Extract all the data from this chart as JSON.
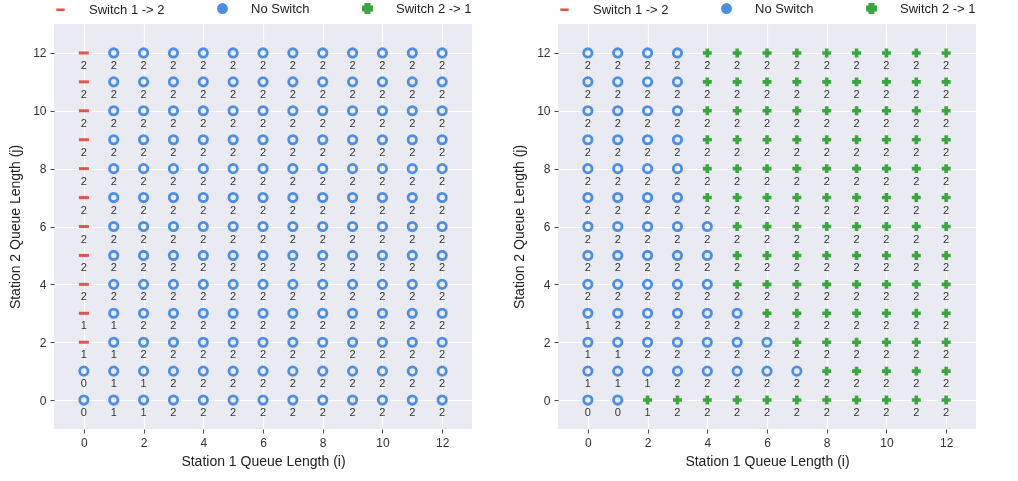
{
  "chart_data": [
    {
      "type": "scatter",
      "xlabel": "Station 1 Queue Length (i)",
      "ylabel": "Station 2 Queue Length (j)",
      "xlim": [
        -1,
        13
      ],
      "ylim": [
        -1,
        13
      ],
      "xticks": [
        0,
        2,
        4,
        6,
        8,
        10,
        12
      ],
      "yticks": [
        0,
        2,
        4,
        6,
        8,
        10,
        12
      ],
      "grid": true,
      "legend": "top",
      "series": [
        {
          "name": "Switch 1 -> 2",
          "color": "#e5534b",
          "x": [
            0,
            0,
            0,
            0,
            0,
            0,
            0,
            0,
            0,
            0,
            0
          ],
          "values": [
            2,
            3,
            4,
            5,
            6,
            7,
            8,
            9,
            10,
            11,
            12
          ]
        },
        {
          "name": "No Switch",
          "color": "#4a8fe7",
          "marker": "circle",
          "x": [
            0,
            1,
            2,
            3,
            4,
            5,
            6,
            7,
            8,
            9,
            10,
            11,
            12,
            0,
            1,
            2,
            3,
            4,
            5,
            6,
            7,
            8,
            9,
            10,
            11,
            12,
            1,
            2,
            3,
            4,
            5,
            6,
            7,
            8,
            9,
            10,
            11,
            12,
            1,
            2,
            3,
            4,
            5,
            6,
            7,
            8,
            9,
            10,
            11,
            12,
            1,
            2,
            3,
            4,
            5,
            6,
            7,
            8,
            9,
            10,
            11,
            12,
            1,
            2,
            3,
            4,
            5,
            6,
            7,
            8,
            9,
            10,
            11,
            12,
            1,
            2,
            3,
            4,
            5,
            6,
            7,
            8,
            9,
            10,
            11,
            12,
            1,
            2,
            3,
            4,
            5,
            6,
            7,
            8,
            9,
            10,
            11,
            12,
            1,
            2,
            3,
            4,
            5,
            6,
            7,
            8,
            9,
            10,
            11,
            12,
            1,
            2,
            3,
            4,
            5,
            6,
            7,
            8,
            9,
            10,
            11,
            12,
            1,
            2,
            3,
            4,
            5,
            6,
            7,
            8,
            9,
            10,
            11,
            12,
            1,
            2,
            3,
            4,
            5,
            6,
            7,
            8,
            9,
            10,
            11,
            12,
            1,
            2,
            3,
            4,
            5,
            6,
            7,
            8,
            9,
            10,
            11,
            12
          ],
          "values": [
            0,
            0,
            0,
            0,
            0,
            0,
            0,
            0,
            0,
            0,
            0,
            0,
            0,
            1,
            1,
            1,
            1,
            1,
            1,
            1,
            1,
            1,
            1,
            1,
            1,
            1,
            2,
            2,
            2,
            2,
            2,
            2,
            2,
            2,
            2,
            2,
            2,
            2,
            3,
            3,
            3,
            3,
            3,
            3,
            3,
            3,
            3,
            3,
            3,
            3,
            4,
            4,
            4,
            4,
            4,
            4,
            4,
            4,
            4,
            4,
            4,
            4,
            5,
            5,
            5,
            5,
            5,
            5,
            5,
            5,
            5,
            5,
            5,
            5,
            6,
            6,
            6,
            6,
            6,
            6,
            6,
            6,
            6,
            6,
            6,
            6,
            7,
            7,
            7,
            7,
            7,
            7,
            7,
            7,
            7,
            7,
            7,
            7,
            8,
            8,
            8,
            8,
            8,
            8,
            8,
            8,
            8,
            8,
            8,
            8,
            9,
            9,
            9,
            9,
            9,
            9,
            9,
            9,
            9,
            9,
            9,
            9,
            10,
            10,
            10,
            10,
            10,
            10,
            10,
            10,
            10,
            10,
            10,
            10,
            11,
            11,
            11,
            11,
            11,
            11,
            11,
            11,
            11,
            11,
            11,
            11,
            12,
            12,
            12,
            12,
            12,
            12,
            12,
            12,
            12,
            12,
            12,
            12
          ]
        },
        {
          "name": "Switch 2 -> 1",
          "color": "#36a93a",
          "marker": "cross"
        }
      ],
      "annotations": [
        {
          "text": "0",
          "x": 0,
          "y": 0
        },
        {
          "text": "1",
          "x": 1,
          "y": 0
        },
        {
          "text": "1",
          "x": 2,
          "y": 0
        },
        {
          "text": "2",
          "x": 3,
          "y": 0
        },
        {
          "text": "2",
          "x": 4,
          "y": 0
        },
        {
          "text": "2",
          "x": 5,
          "y": 0
        },
        {
          "text": "2",
          "x": 6,
          "y": 0
        },
        {
          "text": "2",
          "x": 7,
          "y": 0
        },
        {
          "text": "2",
          "x": 8,
          "y": 0
        },
        {
          "text": "2",
          "x": 9,
          "y": 0
        },
        {
          "text": "2",
          "x": 10,
          "y": 0
        },
        {
          "text": "2",
          "x": 11,
          "y": 0
        },
        {
          "text": "2",
          "x": 12,
          "y": 0
        },
        {
          "text": "0",
          "x": 0,
          "y": 1
        },
        {
          "text": "1",
          "x": 1,
          "y": 1
        },
        {
          "text": "1",
          "x": 2,
          "y": 1
        },
        {
          "text": "2",
          "x": 3,
          "y": 1
        },
        {
          "text": "2",
          "x": 4,
          "y": 1
        },
        {
          "text": "2",
          "x": 5,
          "y": 1
        },
        {
          "text": "2",
          "x": 6,
          "y": 1
        },
        {
          "text": "2",
          "x": 7,
          "y": 1
        },
        {
          "text": "2",
          "x": 8,
          "y": 1
        },
        {
          "text": "2",
          "x": 9,
          "y": 1
        },
        {
          "text": "2",
          "x": 10,
          "y": 1
        },
        {
          "text": "2",
          "x": 11,
          "y": 1
        },
        {
          "text": "2",
          "x": 12,
          "y": 1
        },
        {
          "text": "1",
          "x": 0,
          "y": 2
        },
        {
          "text": "1",
          "x": 1,
          "y": 2
        },
        {
          "text": "2",
          "x": 2,
          "y": 2
        },
        {
          "text": "2",
          "x": 3,
          "y": 2
        },
        {
          "text": "2",
          "x": 4,
          "y": 2
        },
        {
          "text": "2",
          "x": 5,
          "y": 2
        },
        {
          "text": "2",
          "x": 6,
          "y": 2
        },
        {
          "text": "2",
          "x": 7,
          "y": 2
        },
        {
          "text": "2",
          "x": 8,
          "y": 2
        },
        {
          "text": "2",
          "x": 9,
          "y": 2
        },
        {
          "text": "2",
          "x": 10,
          "y": 2
        },
        {
          "text": "2",
          "x": 11,
          "y": 2
        },
        {
          "text": "2",
          "x": 12,
          "y": 2
        },
        {
          "text": "1",
          "x": 0,
          "y": 3
        },
        {
          "text": "1",
          "x": 1,
          "y": 3
        },
        {
          "text": "2",
          "x": 2,
          "y": 3
        },
        {
          "text": "2",
          "x": 3,
          "y": 3
        },
        {
          "text": "2",
          "x": 4,
          "y": 3
        },
        {
          "text": "2",
          "x": 5,
          "y": 3
        },
        {
          "text": "2",
          "x": 6,
          "y": 3
        },
        {
          "text": "2",
          "x": 7,
          "y": 3
        },
        {
          "text": "2",
          "x": 8,
          "y": 3
        },
        {
          "text": "2",
          "x": 9,
          "y": 3
        },
        {
          "text": "2",
          "x": 10,
          "y": 3
        },
        {
          "text": "2",
          "x": 11,
          "y": 3
        },
        {
          "text": "2",
          "x": 12,
          "y": 3
        },
        {
          "text": "2",
          "x": 0,
          "y": 4
        },
        {
          "text": "2",
          "x": 1,
          "y": 4
        },
        {
          "text": "2",
          "x": 2,
          "y": 4
        },
        {
          "text": "2",
          "x": 3,
          "y": 4
        },
        {
          "text": "2",
          "x": 4,
          "y": 4
        },
        {
          "text": "2",
          "x": 5,
          "y": 4
        },
        {
          "text": "2",
          "x": 6,
          "y": 4
        },
        {
          "text": "2",
          "x": 7,
          "y": 4
        },
        {
          "text": "2",
          "x": 8,
          "y": 4
        },
        {
          "text": "2",
          "x": 9,
          "y": 4
        },
        {
          "text": "2",
          "x": 10,
          "y": 4
        },
        {
          "text": "2",
          "x": 11,
          "y": 4
        },
        {
          "text": "2",
          "x": 12,
          "y": 4
        },
        {
          "text": "2",
          "x": 0,
          "y": 5
        },
        {
          "text": "2",
          "x": 1,
          "y": 5
        },
        {
          "text": "2",
          "x": 2,
          "y": 5
        },
        {
          "text": "2",
          "x": 3,
          "y": 5
        },
        {
          "text": "2",
          "x": 4,
          "y": 5
        },
        {
          "text": "2",
          "x": 5,
          "y": 5
        },
        {
          "text": "2",
          "x": 6,
          "y": 5
        },
        {
          "text": "2",
          "x": 7,
          "y": 5
        },
        {
          "text": "2",
          "x": 8,
          "y": 5
        },
        {
          "text": "2",
          "x": 9,
          "y": 5
        },
        {
          "text": "2",
          "x": 10,
          "y": 5
        },
        {
          "text": "2",
          "x": 11,
          "y": 5
        },
        {
          "text": "2",
          "x": 12,
          "y": 5
        },
        {
          "text": "2",
          "x": 0,
          "y": 6
        },
        {
          "text": "2",
          "x": 1,
          "y": 6
        },
        {
          "text": "2",
          "x": 2,
          "y": 6
        },
        {
          "text": "2",
          "x": 3,
          "y": 6
        },
        {
          "text": "2",
          "x": 4,
          "y": 6
        },
        {
          "text": "2",
          "x": 5,
          "y": 6
        },
        {
          "text": "2",
          "x": 6,
          "y": 6
        },
        {
          "text": "2",
          "x": 7,
          "y": 6
        },
        {
          "text": "2",
          "x": 8,
          "y": 6
        },
        {
          "text": "2",
          "x": 9,
          "y": 6
        },
        {
          "text": "2",
          "x": 10,
          "y": 6
        },
        {
          "text": "2",
          "x": 11,
          "y": 6
        },
        {
          "text": "2",
          "x": 12,
          "y": 6
        },
        {
          "text": "2",
          "x": 0,
          "y": 7
        },
        {
          "text": "2",
          "x": 1,
          "y": 7
        },
        {
          "text": "2",
          "x": 2,
          "y": 7
        },
        {
          "text": "2",
          "x": 3,
          "y": 7
        },
        {
          "text": "2",
          "x": 4,
          "y": 7
        },
        {
          "text": "2",
          "x": 5,
          "y": 7
        },
        {
          "text": "2",
          "x": 6,
          "y": 7
        },
        {
          "text": "2",
          "x": 7,
          "y": 7
        },
        {
          "text": "2",
          "x": 8,
          "y": 7
        },
        {
          "text": "2",
          "x": 9,
          "y": 7
        },
        {
          "text": "2",
          "x": 10,
          "y": 7
        },
        {
          "text": "2",
          "x": 11,
          "y": 7
        },
        {
          "text": "2",
          "x": 12,
          "y": 7
        },
        {
          "text": "2",
          "x": 0,
          "y": 8
        },
        {
          "text": "2",
          "x": 1,
          "y": 8
        },
        {
          "text": "2",
          "x": 2,
          "y": 8
        },
        {
          "text": "2",
          "x": 3,
          "y": 8
        },
        {
          "text": "2",
          "x": 4,
          "y": 8
        },
        {
          "text": "2",
          "x": 5,
          "y": 8
        },
        {
          "text": "2",
          "x": 6,
          "y": 8
        },
        {
          "text": "2",
          "x": 7,
          "y": 8
        },
        {
          "text": "2",
          "x": 8,
          "y": 8
        },
        {
          "text": "2",
          "x": 9,
          "y": 8
        },
        {
          "text": "2",
          "x": 10,
          "y": 8
        },
        {
          "text": "2",
          "x": 11,
          "y": 8
        },
        {
          "text": "2",
          "x": 12,
          "y": 8
        },
        {
          "text": "2",
          "x": 0,
          "y": 9
        },
        {
          "text": "2",
          "x": 1,
          "y": 9
        },
        {
          "text": "2",
          "x": 2,
          "y": 9
        },
        {
          "text": "2",
          "x": 3,
          "y": 9
        },
        {
          "text": "2",
          "x": 4,
          "y": 9
        },
        {
          "text": "2",
          "x": 5,
          "y": 9
        },
        {
          "text": "2",
          "x": 6,
          "y": 9
        },
        {
          "text": "2",
          "x": 7,
          "y": 9
        },
        {
          "text": "2",
          "x": 8,
          "y": 9
        },
        {
          "text": "2",
          "x": 9,
          "y": 9
        },
        {
          "text": "2",
          "x": 10,
          "y": 9
        },
        {
          "text": "2",
          "x": 11,
          "y": 9
        },
        {
          "text": "2",
          "x": 12,
          "y": 9
        },
        {
          "text": "2",
          "x": 0,
          "y": 10
        },
        {
          "text": "2",
          "x": 1,
          "y": 10
        },
        {
          "text": "2",
          "x": 2,
          "y": 10
        },
        {
          "text": "2",
          "x": 3,
          "y": 10
        },
        {
          "text": "2",
          "x": 4,
          "y": 10
        },
        {
          "text": "2",
          "x": 5,
          "y": 10
        },
        {
          "text": "2",
          "x": 6,
          "y": 10
        },
        {
          "text": "2",
          "x": 7,
          "y": 10
        },
        {
          "text": "2",
          "x": 8,
          "y": 10
        },
        {
          "text": "2",
          "x": 9,
          "y": 10
        },
        {
          "text": "2",
          "x": 10,
          "y": 10
        },
        {
          "text": "2",
          "x": 11,
          "y": 10
        },
        {
          "text": "2",
          "x": 12,
          "y": 10
        },
        {
          "text": "2",
          "x": 0,
          "y": 11
        },
        {
          "text": "2",
          "x": 1,
          "y": 11
        },
        {
          "text": "2",
          "x": 2,
          "y": 11
        },
        {
          "text": "2",
          "x": 3,
          "y": 11
        },
        {
          "text": "2",
          "x": 4,
          "y": 11
        },
        {
          "text": "2",
          "x": 5,
          "y": 11
        },
        {
          "text": "2",
          "x": 6,
          "y": 11
        },
        {
          "text": "2",
          "x": 7,
          "y": 11
        },
        {
          "text": "2",
          "x": 8,
          "y": 11
        },
        {
          "text": "2",
          "x": 9,
          "y": 11
        },
        {
          "text": "2",
          "x": 10,
          "y": 11
        },
        {
          "text": "2",
          "x": 11,
          "y": 11
        },
        {
          "text": "2",
          "x": 12,
          "y": 11
        },
        {
          "text": "2",
          "x": 0,
          "y": 12
        },
        {
          "text": "2",
          "x": 1,
          "y": 12
        },
        {
          "text": "2",
          "x": 2,
          "y": 12
        },
        {
          "text": "2",
          "x": 3,
          "y": 12
        },
        {
          "text": "2",
          "x": 4,
          "y": 12
        },
        {
          "text": "2",
          "x": 5,
          "y": 12
        },
        {
          "text": "2",
          "x": 6,
          "y": 12
        },
        {
          "text": "2",
          "x": 7,
          "y": 12
        },
        {
          "text": "2",
          "x": 8,
          "y": 12
        },
        {
          "text": "2",
          "x": 9,
          "y": 12
        },
        {
          "text": "2",
          "x": 10,
          "y": 12
        },
        {
          "text": "2",
          "x": 11,
          "y": 12
        },
        {
          "text": "2",
          "x": 12,
          "y": 12
        }
      ]
    },
    {
      "type": "scatter",
      "xlabel": "Station 1 Queue Length (i)",
      "ylabel": "Station 2 Queue Length (j)",
      "xlim": [
        -1,
        13
      ],
      "ylim": [
        -1,
        13
      ],
      "xticks": [
        0,
        2,
        4,
        6,
        8,
        10,
        12
      ],
      "yticks": [
        0,
        2,
        4,
        6,
        8,
        10,
        12
      ],
      "grid": true,
      "legend": "top",
      "series": [
        {
          "name": "Switch 1 -> 2",
          "color": "#e5534b"
        },
        {
          "name": "No Switch",
          "color": "#4a8fe7",
          "marker": "circle",
          "x": [
            0,
            1,
            0,
            1,
            2,
            3,
            4,
            5,
            6,
            7,
            0,
            1,
            2,
            3,
            4,
            5,
            6,
            0,
            1,
            2,
            3,
            4,
            5,
            0,
            1,
            2,
            3,
            4,
            0,
            1,
            2,
            3,
            4,
            0,
            1,
            2,
            3,
            4,
            0,
            1,
            2,
            3,
            0,
            1,
            2,
            3,
            0,
            1,
            2,
            3,
            0,
            1,
            2,
            3,
            0,
            1,
            2,
            3,
            0,
            1,
            2,
            3
          ],
          "values": [
            0,
            0,
            1,
            1,
            1,
            1,
            1,
            1,
            1,
            1,
            2,
            2,
            2,
            2,
            2,
            2,
            2,
            3,
            3,
            3,
            3,
            3,
            3,
            4,
            4,
            4,
            4,
            4,
            5,
            5,
            5,
            5,
            5,
            6,
            6,
            6,
            6,
            6,
            7,
            7,
            7,
            7,
            8,
            8,
            8,
            8,
            9,
            9,
            9,
            9,
            10,
            10,
            10,
            10,
            11,
            11,
            11,
            11,
            12,
            12,
            12,
            12
          ]
        },
        {
          "name": "Switch 2 -> 1",
          "color": "#36a93a",
          "marker": "cross",
          "x": [
            2,
            3,
            4,
            5,
            6,
            7,
            8,
            9,
            10,
            11,
            12,
            8,
            9,
            10,
            11,
            12,
            7,
            8,
            9,
            10,
            11,
            12,
            6,
            7,
            8,
            9,
            10,
            11,
            12,
            5,
            6,
            7,
            8,
            9,
            10,
            11,
            12,
            5,
            6,
            7,
            8,
            9,
            10,
            11,
            12,
            5,
            6,
            7,
            8,
            9,
            10,
            11,
            12,
            4,
            5,
            6,
            7,
            8,
            9,
            10,
            11,
            12,
            4,
            5,
            6,
            7,
            8,
            9,
            10,
            11,
            12,
            4,
            5,
            6,
            7,
            8,
            9,
            10,
            11,
            12,
            4,
            5,
            6,
            7,
            8,
            9,
            10,
            11,
            12,
            4,
            5,
            6,
            7,
            8,
            9,
            10,
            11,
            12,
            4,
            5,
            6,
            7,
            8,
            9,
            10,
            11,
            12
          ],
          "values": [
            0,
            0,
            0,
            0,
            0,
            0,
            0,
            0,
            0,
            0,
            0,
            1,
            1,
            1,
            1,
            1,
            2,
            2,
            2,
            2,
            2,
            2,
            3,
            3,
            3,
            3,
            3,
            3,
            3,
            4,
            4,
            4,
            4,
            4,
            4,
            4,
            4,
            5,
            5,
            5,
            5,
            5,
            5,
            5,
            5,
            6,
            6,
            6,
            6,
            6,
            6,
            6,
            6,
            7,
            7,
            7,
            7,
            7,
            7,
            7,
            7,
            7,
            8,
            8,
            8,
            8,
            8,
            8,
            8,
            8,
            8,
            9,
            9,
            9,
            9,
            9,
            9,
            9,
            9,
            9,
            10,
            10,
            10,
            10,
            10,
            10,
            10,
            10,
            10,
            11,
            11,
            11,
            11,
            11,
            11,
            11,
            11,
            11,
            12,
            12,
            12,
            12,
            12,
            12,
            12,
            12,
            12
          ]
        }
      ],
      "annotations": [
        {
          "text": "0",
          "x": 0,
          "y": 0
        },
        {
          "text": "0",
          "x": 1,
          "y": 0
        },
        {
          "text": "1",
          "x": 2,
          "y": 0
        },
        {
          "text": "2",
          "x": 3,
          "y": 0
        },
        {
          "text": "2",
          "x": 4,
          "y": 0
        },
        {
          "text": "2",
          "x": 5,
          "y": 0
        },
        {
          "text": "2",
          "x": 6,
          "y": 0
        },
        {
          "text": "2",
          "x": 7,
          "y": 0
        },
        {
          "text": "2",
          "x": 8,
          "y": 0
        },
        {
          "text": "2",
          "x": 9,
          "y": 0
        },
        {
          "text": "2",
          "x": 10,
          "y": 0
        },
        {
          "text": "2",
          "x": 11,
          "y": 0
        },
        {
          "text": "2",
          "x": 12,
          "y": 0
        },
        {
          "text": "1",
          "x": 0,
          "y": 1
        },
        {
          "text": "1",
          "x": 1,
          "y": 1
        },
        {
          "text": "1",
          "x": 2,
          "y": 1
        },
        {
          "text": "2",
          "x": 3,
          "y": 1
        },
        {
          "text": "2",
          "x": 4,
          "y": 1
        },
        {
          "text": "2",
          "x": 5,
          "y": 1
        },
        {
          "text": "2",
          "x": 6,
          "y": 1
        },
        {
          "text": "2",
          "x": 7,
          "y": 1
        },
        {
          "text": "2",
          "x": 8,
          "y": 1
        },
        {
          "text": "2",
          "x": 9,
          "y": 1
        },
        {
          "text": "2",
          "x": 10,
          "y": 1
        },
        {
          "text": "2",
          "x": 11,
          "y": 1
        },
        {
          "text": "2",
          "x": 12,
          "y": 1
        },
        {
          "text": "1",
          "x": 0,
          "y": 2
        },
        {
          "text": "1",
          "x": 1,
          "y": 2
        },
        {
          "text": "2",
          "x": 2,
          "y": 2
        },
        {
          "text": "2",
          "x": 3,
          "y": 2
        },
        {
          "text": "2",
          "x": 4,
          "y": 2
        },
        {
          "text": "2",
          "x": 5,
          "y": 2
        },
        {
          "text": "2",
          "x": 6,
          "y": 2
        },
        {
          "text": "2",
          "x": 7,
          "y": 2
        },
        {
          "text": "2",
          "x": 8,
          "y": 2
        },
        {
          "text": "2",
          "x": 9,
          "y": 2
        },
        {
          "text": "2",
          "x": 10,
          "y": 2
        },
        {
          "text": "2",
          "x": 11,
          "y": 2
        },
        {
          "text": "2",
          "x": 12,
          "y": 2
        },
        {
          "text": "1",
          "x": 0,
          "y": 3
        },
        {
          "text": "2",
          "x": 1,
          "y": 3
        },
        {
          "text": "2",
          "x": 2,
          "y": 3
        },
        {
          "text": "2",
          "x": 3,
          "y": 3
        },
        {
          "text": "2",
          "x": 4,
          "y": 3
        },
        {
          "text": "2",
          "x": 5,
          "y": 3
        },
        {
          "text": "2",
          "x": 6,
          "y": 3
        },
        {
          "text": "2",
          "x": 7,
          "y": 3
        },
        {
          "text": "2",
          "x": 8,
          "y": 3
        },
        {
          "text": "2",
          "x": 9,
          "y": 3
        },
        {
          "text": "2",
          "x": 10,
          "y": 3
        },
        {
          "text": "2",
          "x": 11,
          "y": 3
        },
        {
          "text": "2",
          "x": 12,
          "y": 3
        },
        {
          "text": "2",
          "x": 0,
          "y": 4
        },
        {
          "text": "2",
          "x": 1,
          "y": 4
        },
        {
          "text": "2",
          "x": 2,
          "y": 4
        },
        {
          "text": "2",
          "x": 3,
          "y": 4
        },
        {
          "text": "2",
          "x": 4,
          "y": 4
        },
        {
          "text": "2",
          "x": 5,
          "y": 4
        },
        {
          "text": "2",
          "x": 6,
          "y": 4
        },
        {
          "text": "2",
          "x": 7,
          "y": 4
        },
        {
          "text": "2",
          "x": 8,
          "y": 4
        },
        {
          "text": "2",
          "x": 9,
          "y": 4
        },
        {
          "text": "2",
          "x": 10,
          "y": 4
        },
        {
          "text": "2",
          "x": 11,
          "y": 4
        },
        {
          "text": "2",
          "x": 12,
          "y": 4
        },
        {
          "text": "2",
          "x": 0,
          "y": 5
        },
        {
          "text": "2",
          "x": 1,
          "y": 5
        },
        {
          "text": "2",
          "x": 2,
          "y": 5
        },
        {
          "text": "2",
          "x": 3,
          "y": 5
        },
        {
          "text": "2",
          "x": 4,
          "y": 5
        },
        {
          "text": "2",
          "x": 5,
          "y": 5
        },
        {
          "text": "2",
          "x": 6,
          "y": 5
        },
        {
          "text": "2",
          "x": 7,
          "y": 5
        },
        {
          "text": "2",
          "x": 8,
          "y": 5
        },
        {
          "text": "2",
          "x": 9,
          "y": 5
        },
        {
          "text": "2",
          "x": 10,
          "y": 5
        },
        {
          "text": "2",
          "x": 11,
          "y": 5
        },
        {
          "text": "2",
          "x": 12,
          "y": 5
        },
        {
          "text": "2",
          "x": 0,
          "y": 6
        },
        {
          "text": "2",
          "x": 1,
          "y": 6
        },
        {
          "text": "2",
          "x": 2,
          "y": 6
        },
        {
          "text": "2",
          "x": 3,
          "y": 6
        },
        {
          "text": "2",
          "x": 4,
          "y": 6
        },
        {
          "text": "2",
          "x": 5,
          "y": 6
        },
        {
          "text": "2",
          "x": 6,
          "y": 6
        },
        {
          "text": "2",
          "x": 7,
          "y": 6
        },
        {
          "text": "2",
          "x": 8,
          "y": 6
        },
        {
          "text": "2",
          "x": 9,
          "y": 6
        },
        {
          "text": "2",
          "x": 10,
          "y": 6
        },
        {
          "text": "2",
          "x": 11,
          "y": 6
        },
        {
          "text": "2",
          "x": 12,
          "y": 6
        },
        {
          "text": "2",
          "x": 0,
          "y": 7
        },
        {
          "text": "2",
          "x": 1,
          "y": 7
        },
        {
          "text": "2",
          "x": 2,
          "y": 7
        },
        {
          "text": "2",
          "x": 3,
          "y": 7
        },
        {
          "text": "2",
          "x": 4,
          "y": 7
        },
        {
          "text": "2",
          "x": 5,
          "y": 7
        },
        {
          "text": "2",
          "x": 6,
          "y": 7
        },
        {
          "text": "2",
          "x": 7,
          "y": 7
        },
        {
          "text": "2",
          "x": 8,
          "y": 7
        },
        {
          "text": "2",
          "x": 9,
          "y": 7
        },
        {
          "text": "2",
          "x": 10,
          "y": 7
        },
        {
          "text": "2",
          "x": 11,
          "y": 7
        },
        {
          "text": "2",
          "x": 12,
          "y": 7
        },
        {
          "text": "2",
          "x": 0,
          "y": 8
        },
        {
          "text": "2",
          "x": 1,
          "y": 8
        },
        {
          "text": "2",
          "x": 2,
          "y": 8
        },
        {
          "text": "2",
          "x": 3,
          "y": 8
        },
        {
          "text": "2",
          "x": 4,
          "y": 8
        },
        {
          "text": "2",
          "x": 5,
          "y": 8
        },
        {
          "text": "2",
          "x": 6,
          "y": 8
        },
        {
          "text": "2",
          "x": 7,
          "y": 8
        },
        {
          "text": "2",
          "x": 8,
          "y": 8
        },
        {
          "text": "2",
          "x": 9,
          "y": 8
        },
        {
          "text": "2",
          "x": 10,
          "y": 8
        },
        {
          "text": "2",
          "x": 11,
          "y": 8
        },
        {
          "text": "2",
          "x": 12,
          "y": 8
        },
        {
          "text": "2",
          "x": 0,
          "y": 9
        },
        {
          "text": "2",
          "x": 1,
          "y": 9
        },
        {
          "text": "2",
          "x": 2,
          "y": 9
        },
        {
          "text": "2",
          "x": 3,
          "y": 9
        },
        {
          "text": "2",
          "x": 4,
          "y": 9
        },
        {
          "text": "2",
          "x": 5,
          "y": 9
        },
        {
          "text": "2",
          "x": 6,
          "y": 9
        },
        {
          "text": "2",
          "x": 7,
          "y": 9
        },
        {
          "text": "2",
          "x": 8,
          "y": 9
        },
        {
          "text": "2",
          "x": 9,
          "y": 9
        },
        {
          "text": "2",
          "x": 10,
          "y": 9
        },
        {
          "text": "2",
          "x": 11,
          "y": 9
        },
        {
          "text": "2",
          "x": 12,
          "y": 9
        },
        {
          "text": "2",
          "x": 0,
          "y": 10
        },
        {
          "text": "2",
          "x": 1,
          "y": 10
        },
        {
          "text": "2",
          "x": 2,
          "y": 10
        },
        {
          "text": "2",
          "x": 3,
          "y": 10
        },
        {
          "text": "2",
          "x": 4,
          "y": 10
        },
        {
          "text": "2",
          "x": 5,
          "y": 10
        },
        {
          "text": "2",
          "x": 6,
          "y": 10
        },
        {
          "text": "2",
          "x": 7,
          "y": 10
        },
        {
          "text": "2",
          "x": 8,
          "y": 10
        },
        {
          "text": "2",
          "x": 9,
          "y": 10
        },
        {
          "text": "2",
          "x": 10,
          "y": 10
        },
        {
          "text": "2",
          "x": 11,
          "y": 10
        },
        {
          "text": "2",
          "x": 12,
          "y": 10
        },
        {
          "text": "2",
          "x": 0,
          "y": 11
        },
        {
          "text": "2",
          "x": 1,
          "y": 11
        },
        {
          "text": "2",
          "x": 2,
          "y": 11
        },
        {
          "text": "2",
          "x": 3,
          "y": 11
        },
        {
          "text": "2",
          "x": 4,
          "y": 11
        },
        {
          "text": "2",
          "x": 5,
          "y": 11
        },
        {
          "text": "2",
          "x": 6,
          "y": 11
        },
        {
          "text": "2",
          "x": 7,
          "y": 11
        },
        {
          "text": "2",
          "x": 8,
          "y": 11
        },
        {
          "text": "2",
          "x": 9,
          "y": 11
        },
        {
          "text": "2",
          "x": 10,
          "y": 11
        },
        {
          "text": "2",
          "x": 11,
          "y": 11
        },
        {
          "text": "2",
          "x": 12,
          "y": 11
        },
        {
          "text": "2",
          "x": 0,
          "y": 12
        },
        {
          "text": "2",
          "x": 1,
          "y": 12
        },
        {
          "text": "2",
          "x": 2,
          "y": 12
        },
        {
          "text": "2",
          "x": 3,
          "y": 12
        },
        {
          "text": "2",
          "x": 4,
          "y": 12
        },
        {
          "text": "2",
          "x": 5,
          "y": 12
        },
        {
          "text": "2",
          "x": 6,
          "y": 12
        },
        {
          "text": "2",
          "x": 7,
          "y": 12
        },
        {
          "text": "2",
          "x": 8,
          "y": 12
        },
        {
          "text": "2",
          "x": 9,
          "y": 12
        },
        {
          "text": "2",
          "x": 10,
          "y": 12
        },
        {
          "text": "2",
          "x": 11,
          "y": 12
        },
        {
          "text": "2",
          "x": 12,
          "y": 12
        }
      ]
    }
  ]
}
